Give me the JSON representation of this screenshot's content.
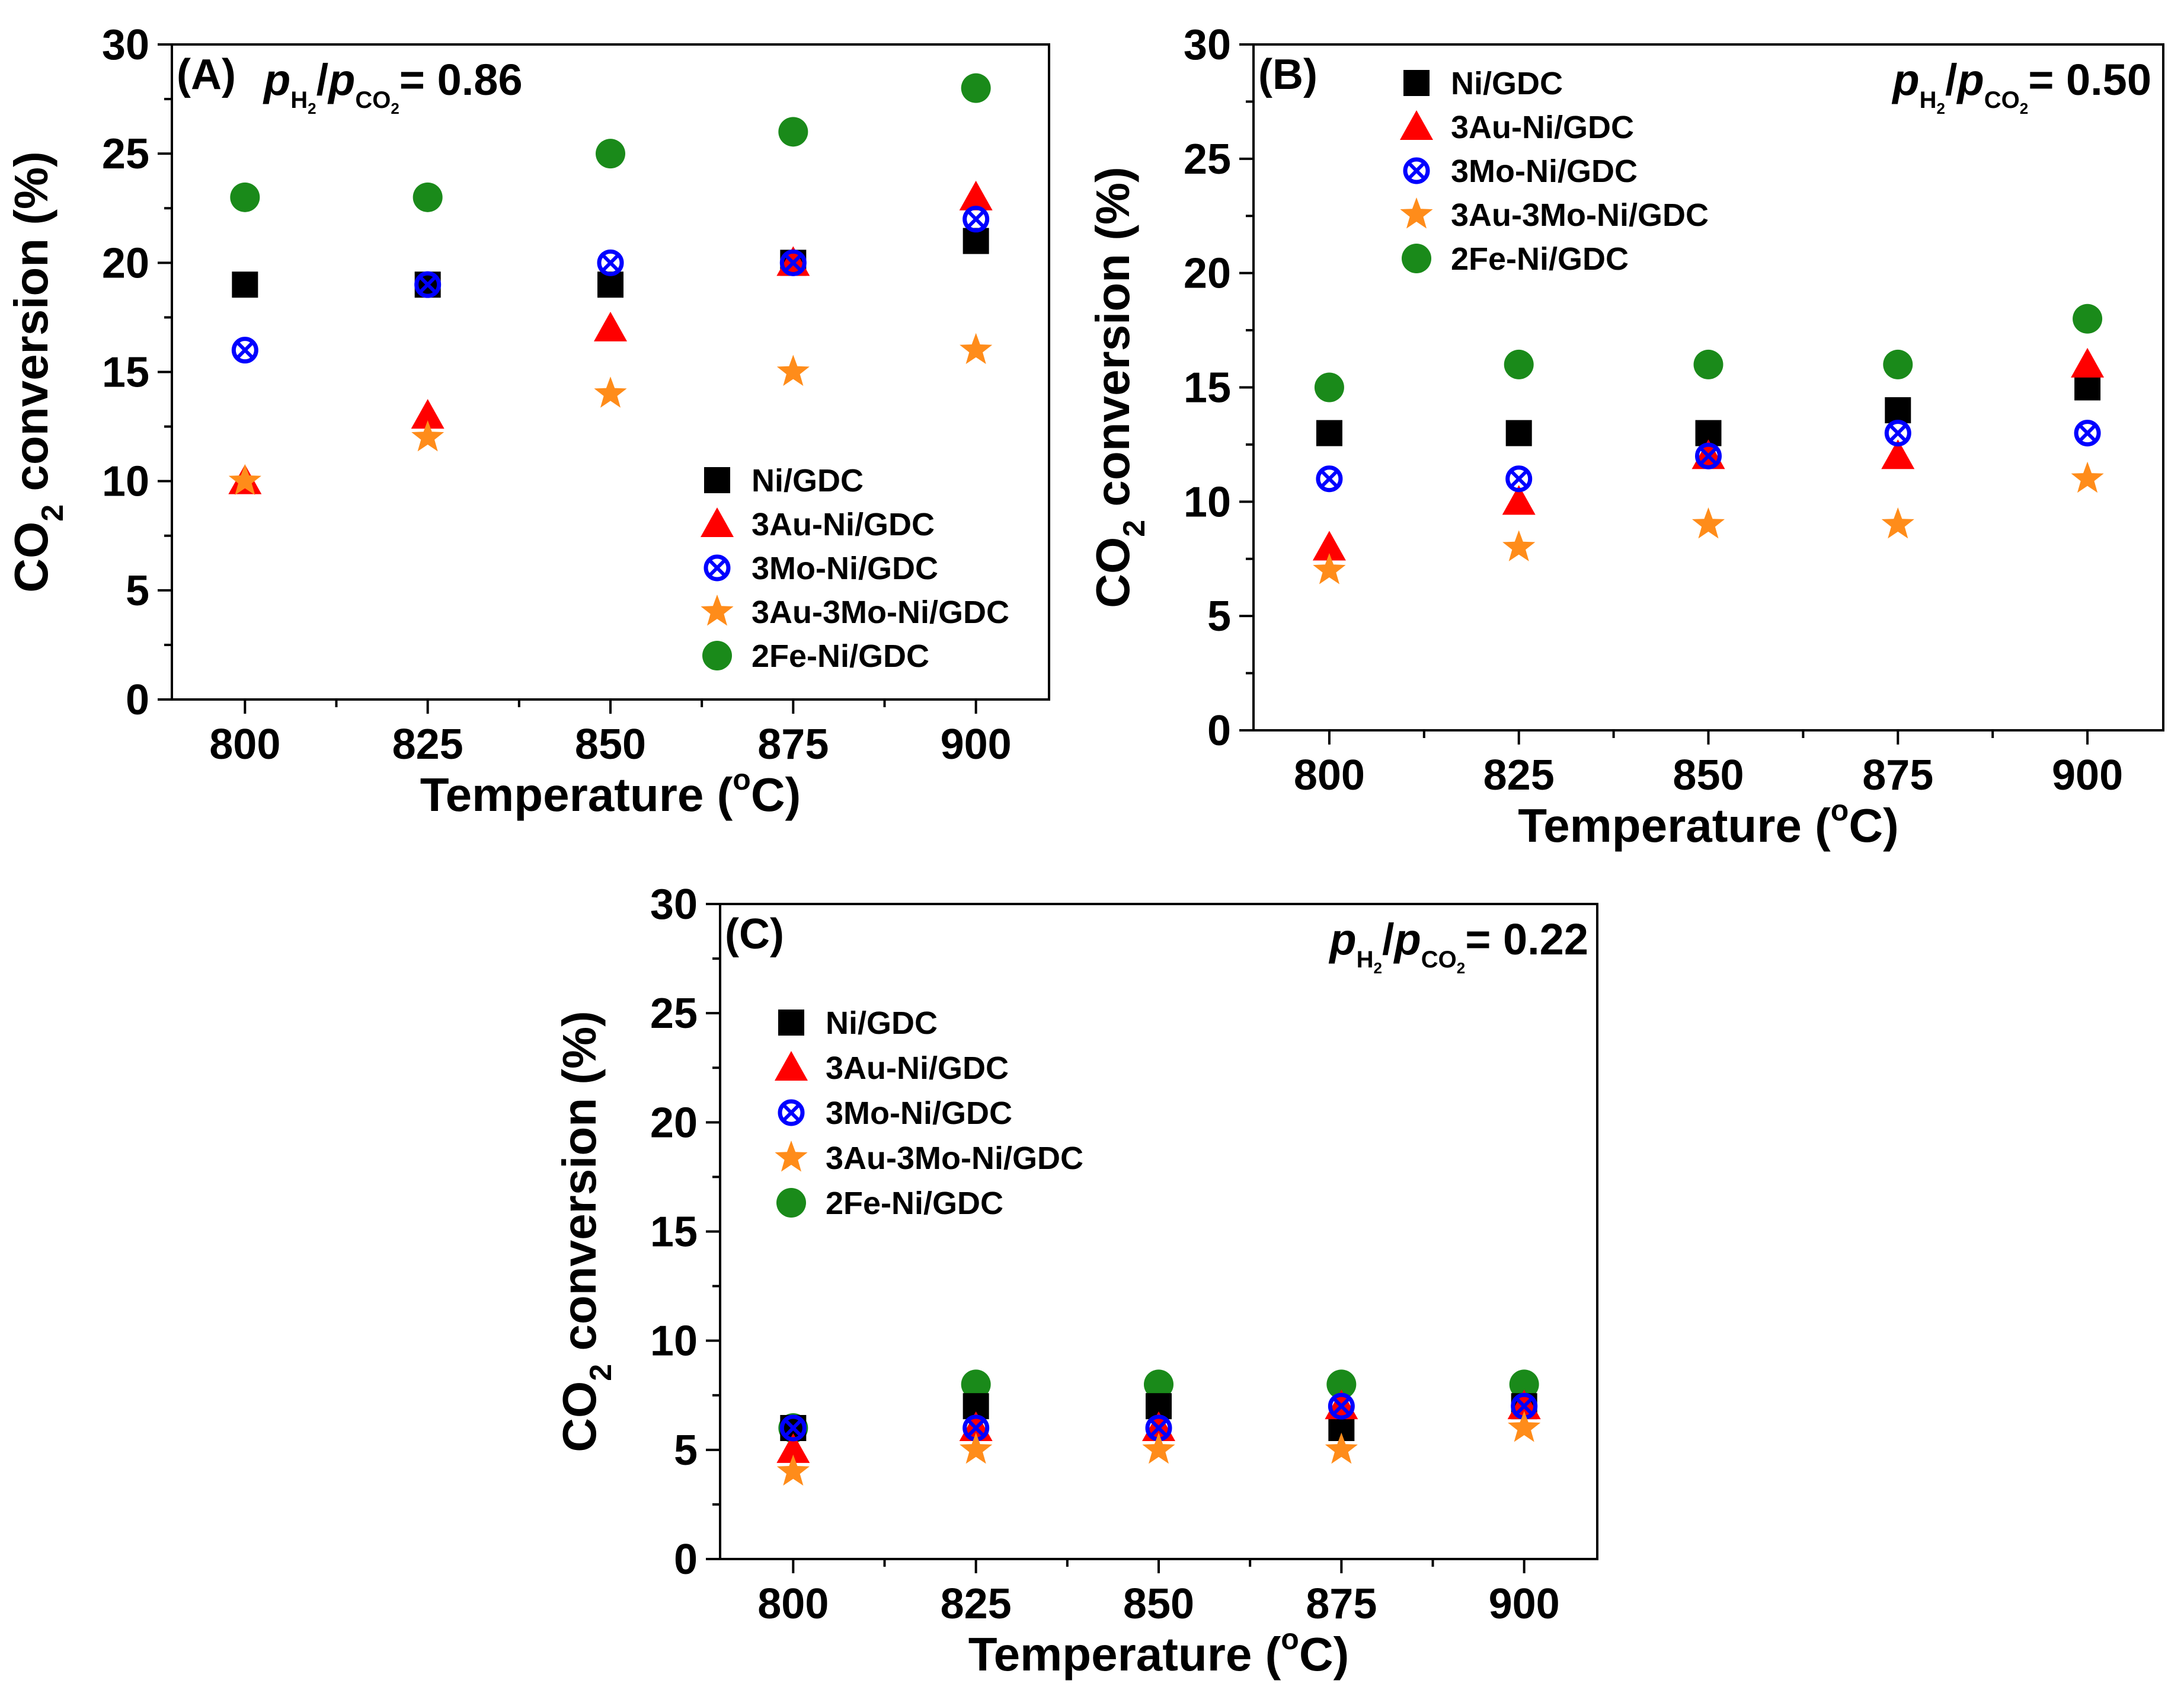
{
  "series_styles": [
    {
      "name": "Ni/GDC",
      "marker": "square",
      "color": "#000000"
    },
    {
      "name": "3Au-Ni/GDC",
      "marker": "triangle",
      "color": "#ff0000"
    },
    {
      "name": "3Mo-Ni/GDC",
      "marker": "crossed-circle",
      "color": "#0000ff"
    },
    {
      "name": "3Au-3Mo-Ni/GDC",
      "marker": "star",
      "color": "#ff8c1a"
    },
    {
      "name": "2Fe-Ni/GDC",
      "marker": "circle",
      "color": "#1a8a1a"
    }
  ],
  "chart_data": [
    {
      "type": "scatter",
      "panel": "(A)",
      "ratio_label": {
        "p": "p",
        "h2": "H",
        "h2_sub": "2",
        "slash": "/",
        "co2": "CO",
        "co2_sub": "2",
        "eq": "= 0.86"
      },
      "xlabel": "Temperature (",
      "xlabel_degree": "o",
      "xlabel_unit": "C)",
      "ylabel": "CO",
      "ylabel_sub": "2",
      "ylabel_rest": " conversion (%)",
      "x": [
        800,
        825,
        850,
        875,
        900
      ],
      "xlim": [
        790,
        910
      ],
      "ylim": [
        0,
        30
      ],
      "xticks": [
        "800",
        "825",
        "850",
        "875",
        "900"
      ],
      "yticks": [
        "0",
        "5",
        "10",
        "15",
        "20",
        "25",
        "30"
      ],
      "legend_position": "bottom-right",
      "series": [
        {
          "name": "Ni/GDC",
          "values": [
            19,
            19,
            19,
            20,
            21
          ]
        },
        {
          "name": "3Au-Ni/GDC",
          "values": [
            10,
            13,
            17,
            20,
            23
          ]
        },
        {
          "name": "3Mo-Ni/GDC",
          "values": [
            16,
            19,
            20,
            20,
            22
          ]
        },
        {
          "name": "3Au-3Mo-Ni/GDC",
          "values": [
            10,
            12,
            14,
            15,
            16
          ]
        },
        {
          "name": "2Fe-Ni/GDC",
          "values": [
            23,
            23,
            25,
            26,
            28
          ]
        }
      ]
    },
    {
      "type": "scatter",
      "panel": "(B)",
      "ratio_label": {
        "p": "p",
        "h2": "H",
        "h2_sub": "2",
        "slash": "/",
        "co2": "CO",
        "co2_sub": "2",
        "eq": "= 0.50"
      },
      "xlabel": "Temperature (",
      "xlabel_degree": "o",
      "xlabel_unit": "C)",
      "ylabel": "CO",
      "ylabel_sub": "2",
      "ylabel_rest": " conversion (%)",
      "x": [
        800,
        825,
        850,
        875,
        900
      ],
      "xlim": [
        790,
        910
      ],
      "ylim": [
        0,
        30
      ],
      "xticks": [
        "800",
        "825",
        "850",
        "875",
        "900"
      ],
      "yticks": [
        "0",
        "5",
        "10",
        "15",
        "20",
        "25",
        "30"
      ],
      "legend_position": "top-left",
      "series": [
        {
          "name": "Ni/GDC",
          "values": [
            13,
            13,
            13,
            14,
            15
          ]
        },
        {
          "name": "3Au-Ni/GDC",
          "values": [
            8,
            10,
            12,
            12,
            16
          ]
        },
        {
          "name": "3Mo-Ni/GDC",
          "values": [
            11,
            11,
            12,
            13,
            13
          ]
        },
        {
          "name": "3Au-3Mo-Ni/GDC",
          "values": [
            7,
            8,
            9,
            9,
            11
          ]
        },
        {
          "name": "2Fe-Ni/GDC",
          "values": [
            15,
            16,
            16,
            16,
            18
          ]
        }
      ]
    },
    {
      "type": "scatter",
      "panel": "(C)",
      "ratio_label": {
        "p": "p",
        "h2": "H",
        "h2_sub": "2",
        "slash": "/",
        "co2": "CO",
        "co2_sub": "2",
        "eq": "= 0.22"
      },
      "xlabel": "Temperature (",
      "xlabel_degree": "o",
      "xlabel_unit": "C)",
      "ylabel": "CO",
      "ylabel_sub": "2",
      "ylabel_rest": " conversion (%)",
      "x": [
        800,
        825,
        850,
        875,
        900
      ],
      "xlim": [
        790,
        910
      ],
      "ylim": [
        0,
        30
      ],
      "xticks": [
        "800",
        "825",
        "850",
        "875",
        "900"
      ],
      "yticks": [
        "0",
        "5",
        "10",
        "15",
        "20",
        "25",
        "30"
      ],
      "legend_position": "top-left",
      "series": [
        {
          "name": "Ni/GDC",
          "values": [
            6,
            7,
            7,
            6,
            7
          ]
        },
        {
          "name": "3Au-Ni/GDC",
          "values": [
            5,
            6,
            6,
            7,
            7
          ]
        },
        {
          "name": "3Mo-Ni/GDC",
          "values": [
            6,
            6,
            6,
            7,
            7
          ]
        },
        {
          "name": "3Au-3Mo-Ni/GDC",
          "values": [
            4,
            5,
            5,
            5,
            6
          ]
        },
        {
          "name": "2Fe-Ni/GDC",
          "values": [
            6,
            8,
            8,
            8,
            8
          ]
        }
      ]
    }
  ]
}
